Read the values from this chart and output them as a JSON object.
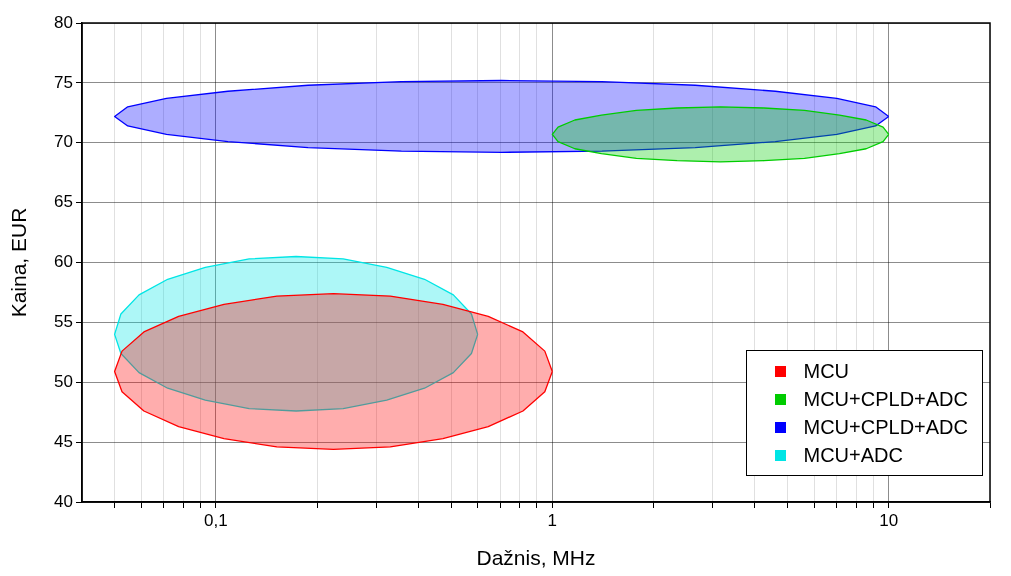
{
  "chart_data": {
    "type": "area",
    "xlabel": "Dažnis, MHz",
    "ylabel": "Kaina, EUR",
    "log": "x",
    "grid": true,
    "legend": "bottom right",
    "marker": "none",
    "xlim": [
      0.04,
      20
    ],
    "ylim": [
      40,
      80
    ],
    "xticks": [
      {
        "value": 0.05,
        "label": null
      },
      {
        "value": 0.06,
        "label": null
      },
      {
        "value": 0.07,
        "label": null
      },
      {
        "value": 0.08,
        "label": null
      },
      {
        "value": 0.09,
        "label": null
      },
      {
        "value": 0.1,
        "label": "0,1"
      },
      {
        "value": 0.2,
        "label": null
      },
      {
        "value": 0.3,
        "label": null
      },
      {
        "value": 0.4,
        "label": null
      },
      {
        "value": 0.5,
        "label": null
      },
      {
        "value": 0.6,
        "label": null
      },
      {
        "value": 0.7,
        "label": null
      },
      {
        "value": 0.8,
        "label": null
      },
      {
        "value": 0.9,
        "label": null
      },
      1,
      {
        "value": 2,
        "label": null
      },
      {
        "value": 3,
        "label": null
      },
      {
        "value": 4,
        "label": null
      },
      {
        "value": 5,
        "label": null
      },
      {
        "value": 6,
        "label": null
      },
      {
        "value": 7,
        "label": null
      },
      {
        "value": 8,
        "label": null
      },
      {
        "value": 9,
        "label": null
      },
      10,
      {
        "value": 20,
        "label": null
      }
    ],
    "yticks": [
      40,
      45,
      50,
      55,
      60,
      65,
      70,
      75,
      80
    ],
    "series": [
      {
        "name": "MCU",
        "color": "#ff0000",
        "x": [
          1,
          0.95,
          0.818,
          0.645,
          0.473,
          0.33,
          0.2236,
          0.1518,
          0.1057,
          0.0775,
          0.0611,
          0.0526,
          0.05,
          0.0526,
          0.0611,
          0.0775,
          0.1057,
          0.1518,
          0.2236,
          0.33,
          0.473,
          0.645,
          0.818,
          0.95,
          1
        ],
        "values": [
          50.9,
          52.6,
          54.2,
          55.5,
          56.5,
          57.2,
          57.4,
          57.2,
          56.5,
          55.5,
          54.2,
          52.6,
          50.9,
          49.2,
          47.6,
          46.3,
          45.3,
          44.6,
          44.4,
          44.6,
          45.3,
          46.3,
          47.6,
          49.2,
          50.9
        ]
      },
      {
        "name": "MCU+CPLD+ADC",
        "color": "#00cc00",
        "x": [
          10,
          9.62,
          8.57,
          7.14,
          5.62,
          4.26,
          3.16,
          2.35,
          1.778,
          1.4,
          1.167,
          1.04,
          1,
          1.04,
          1.167,
          1.4,
          1.778,
          2.35,
          3.16,
          4.26,
          5.62,
          7.14,
          8.57,
          9.62,
          10
        ],
        "values": [
          70.7,
          71.3,
          71.9,
          72.3,
          72.7,
          72.9,
          73,
          72.9,
          72.7,
          72.3,
          71.9,
          71.3,
          70.7,
          70.1,
          69.5,
          69.1,
          68.7,
          68.5,
          68.4,
          68.5,
          68.7,
          69.1,
          69.5,
          70.1,
          70.7
        ]
      },
      {
        "name": "MCU+CPLD+ADC",
        "color": "#0000ff",
        "x": [
          10,
          9.14,
          7.01,
          4.6,
          2.66,
          1.404,
          0.707,
          0.356,
          0.188,
          0.1086,
          0.0713,
          0.0547,
          0.05,
          0.0547,
          0.0713,
          0.1086,
          0.188,
          0.356,
          0.707,
          1.404,
          2.66,
          4.6,
          7.01,
          9.14,
          10
        ],
        "values": [
          72.2,
          73,
          73.7,
          74.3,
          74.8,
          75.1,
          75.2,
          75.1,
          74.8,
          74.3,
          73.7,
          73,
          72.2,
          71.4,
          70.7,
          70.1,
          69.6,
          69.3,
          69.2,
          69.3,
          69.6,
          70.1,
          70.7,
          71.4,
          72.2
        ]
      },
      {
        "name": "MCU+ADC",
        "color": "#00e5e5",
        "x": [
          0.6,
          0.575,
          0.508,
          0.417,
          0.322,
          0.239,
          0.1732,
          0.1256,
          0.093,
          0.0719,
          0.0591,
          0.0522,
          0.05,
          0.0522,
          0.0591,
          0.0719,
          0.093,
          0.1256,
          0.1732,
          0.239,
          0.322,
          0.417,
          0.508,
          0.575,
          0.6
        ],
        "values": [
          54,
          55.7,
          57.3,
          58.6,
          59.6,
          60.3,
          60.5,
          60.3,
          59.6,
          58.6,
          57.3,
          55.7,
          54,
          52.4,
          50.8,
          49.5,
          48.5,
          47.8,
          47.6,
          47.8,
          48.5,
          49.5,
          50.8,
          52.4,
          54
        ]
      }
    ]
  }
}
